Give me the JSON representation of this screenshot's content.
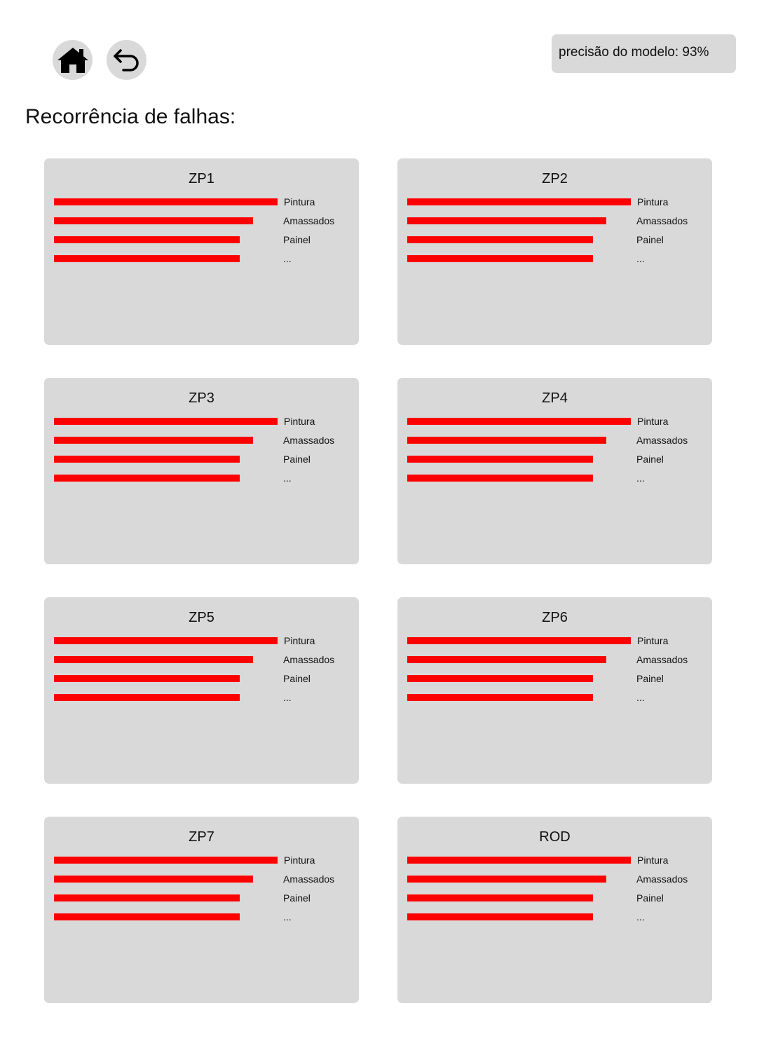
{
  "toolbar": {
    "home_icon": "home-icon",
    "back_icon": "undo-arrow-icon"
  },
  "accuracy_badge": "precisão do modelo: 93%",
  "page_title": "Recorrência de falhas:",
  "colors": {
    "bar": "#ff0000",
    "card_background": "#d9d9d9",
    "button_background": "#d9d9d9"
  },
  "chart_data": [
    {
      "type": "bar",
      "title": "ZP1",
      "categories": [
        "Pintura",
        "Amassados",
        "Painel",
        "..."
      ],
      "values": [
        100,
        89,
        83,
        83
      ]
    },
    {
      "type": "bar",
      "title": "ZP2",
      "categories": [
        "Pintura",
        "Amassados",
        "Painel",
        "..."
      ],
      "values": [
        100,
        89,
        83,
        83
      ]
    },
    {
      "type": "bar",
      "title": "ZP3",
      "categories": [
        "Pintura",
        "Amassados",
        "Painel",
        "..."
      ],
      "values": [
        100,
        89,
        83,
        83
      ]
    },
    {
      "type": "bar",
      "title": "ZP4",
      "categories": [
        "Pintura",
        "Amassados",
        "Painel",
        "..."
      ],
      "values": [
        100,
        89,
        83,
        83
      ]
    },
    {
      "type": "bar",
      "title": "ZP5",
      "categories": [
        "Pintura",
        "Amassados",
        "Painel",
        "..."
      ],
      "values": [
        100,
        89,
        83,
        83
      ]
    },
    {
      "type": "bar",
      "title": "ZP6",
      "categories": [
        "Pintura",
        "Amassados",
        "Painel",
        "..."
      ],
      "values": [
        100,
        89,
        83,
        83
      ]
    },
    {
      "type": "bar",
      "title": "ZP7",
      "categories": [
        "Pintura",
        "Amassados",
        "Painel",
        "..."
      ],
      "values": [
        100,
        89,
        83,
        83
      ]
    },
    {
      "type": "bar",
      "title": "ROD",
      "categories": [
        "Pintura",
        "Amassados",
        "Painel",
        "..."
      ],
      "values": [
        100,
        89,
        83,
        83
      ]
    }
  ]
}
